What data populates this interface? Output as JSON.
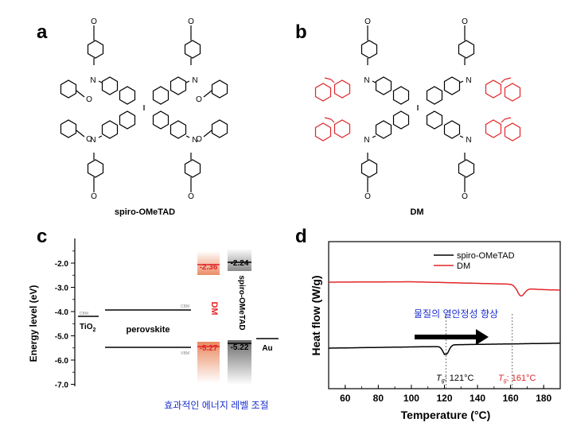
{
  "panels": {
    "a": {
      "label": "a",
      "caption": "spiro-OMeTAD"
    },
    "b": {
      "label": "b",
      "caption": "DM"
    },
    "c": {
      "label": "c"
    },
    "d": {
      "label": "d"
    }
  },
  "molecule": {
    "n_label": "N",
    "methoxy_label": "O"
  },
  "colors": {
    "black": "#000000",
    "red": "#e0262a",
    "orange": "#e87b4e",
    "grey": "#7a7a7a",
    "blue": "#1a2fd0"
  },
  "chart_data": [
    {
      "type": "bar",
      "title": "",
      "ylabel": "Energy level (eV)",
      "ylim": [
        -7.0,
        -1.5
      ],
      "yticks": [
        "-2.0",
        "-3.0",
        "-4.0",
        "-5.0",
        "-6.0",
        "-7.0"
      ],
      "levels": [
        {
          "name": "TiO2",
          "cbm": -4.3,
          "label": "TiO₂",
          "cbm_tag": "CBM"
        },
        {
          "name": "perovskite",
          "cbm": -3.93,
          "vbm": -5.5,
          "label": "perovskite",
          "cbm_tag": "CBM",
          "vbm_tag": "VBM"
        },
        {
          "name": "DM",
          "homo": -5.27,
          "lumo": -2.36,
          "label": "DM"
        },
        {
          "name": "spiro-OMeTAD",
          "homo": -5.22,
          "lumo": -2.24,
          "label": "spiro-OMeTAD"
        },
        {
          "name": "Au",
          "level": -5.1,
          "label": "Au"
        }
      ],
      "value_labels": {
        "dm_lumo": "-2.36",
        "dm_homo": "-5.27",
        "spiro_lumo": "-2.24",
        "spiro_homo": "-5.22"
      },
      "annotation": "효과적인 에너지 레벨 조절"
    },
    {
      "type": "line",
      "xlabel": "Temperature (°C)",
      "ylabel": "Heat flow (W/g)",
      "xlim": [
        50,
        190
      ],
      "xticks": [
        "60",
        "80",
        "100",
        "120",
        "140",
        "160",
        "180"
      ],
      "series": [
        {
          "name": "spiro-OMeTAD",
          "color": "#000000"
        },
        {
          "name": "DM",
          "color": "#e0262a"
        }
      ],
      "tg": [
        {
          "series": "spiro-OMeTAD",
          "value": 121,
          "label": "121°C",
          "symbol": "T",
          "sub": "g"
        },
        {
          "series": "DM",
          "value": 161,
          "label": "161°C",
          "symbol": "T",
          "sub": "g"
        }
      ],
      "annotation": "물질의 열안정성 향상"
    }
  ]
}
